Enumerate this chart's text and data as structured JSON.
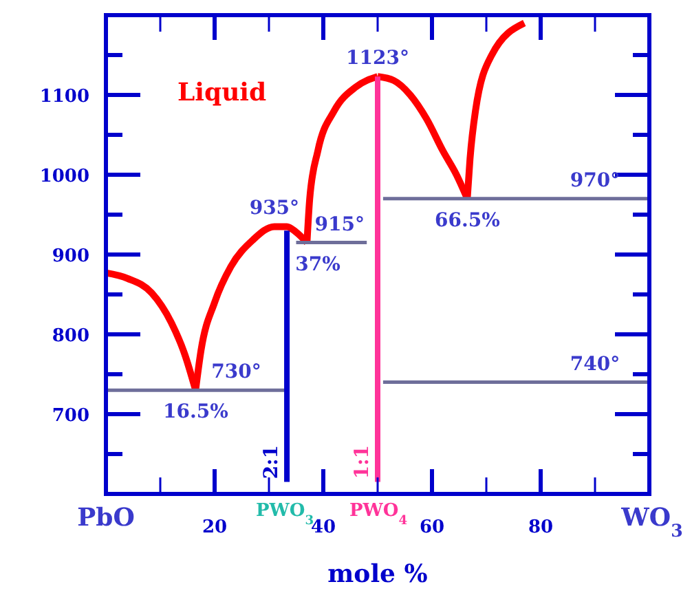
{
  "chart_data": {
    "type": "line",
    "xlabel": "mole %",
    "xlim": [
      0,
      100
    ],
    "ylim": [
      600,
      1200
    ],
    "xticks": [
      {
        "value": 10,
        "label": null
      },
      20,
      {
        "value": 30,
        "label": null
      },
      40,
      {
        "value": 50,
        "label": null
      },
      60,
      {
        "value": 70,
        "label": null
      },
      80,
      {
        "value": 90,
        "label": null
      }
    ],
    "yticks": [
      {
        "value": 650,
        "label": null
      },
      700,
      {
        "value": 750,
        "label": null
      },
      800,
      {
        "value": 850,
        "label": null
      },
      900,
      {
        "value": 950,
        "label": null
      },
      1000,
      {
        "value": 1050,
        "label": null
      },
      1100,
      {
        "value": 1150,
        "label": null
      }
    ],
    "series": [
      {
        "color": "#ff0000",
        "x": [
          0,
          4,
          8.4,
          12,
          14.5,
          16.5
        ],
        "values": [
          877,
          870,
          852,
          815,
          775,
          730
        ]
      },
      {
        "color": "#ff0000",
        "x": [
          16.5,
          17.5,
          20,
          23,
          27,
          31,
          33.3,
          35,
          37
        ],
        "values": [
          730,
          780,
          840,
          885,
          918,
          935,
          935,
          928,
          915
        ]
      },
      {
        "color": "#ff0000",
        "x": [
          37,
          37.5,
          39,
          42,
          46,
          50
        ],
        "values": [
          915,
          970,
          1030,
          1080,
          1110,
          1123
        ]
      },
      {
        "color": "#ff0000",
        "x": [
          50,
          53,
          56,
          59,
          62,
          64.5,
          66.5
        ],
        "values": [
          1123,
          1118,
          1100,
          1070,
          1030,
          1000,
          970
        ]
      },
      {
        "color": "#ff0000",
        "x": [
          66.5,
          67,
          68,
          71,
          77
        ],
        "values": [
          970,
          1020,
          1080,
          1150,
          1190
        ]
      },
      {
        "color": "#6e6e9a",
        "x": [
          0,
          33.3
        ],
        "values": [
          730,
          730
        ]
      },
      {
        "color": "#6e6e9a",
        "x": [
          35,
          48
        ],
        "values": [
          915,
          915
        ]
      },
      {
        "color": "#6e6e9a",
        "x": [
          51,
          100
        ],
        "values": [
          970,
          970
        ]
      },
      {
        "color": "#6e6e9a",
        "x": [
          51,
          100
        ],
        "values": [
          740,
          740
        ]
      },
      {
        "color": "#0000cc",
        "x": [
          33.3,
          33.3
        ],
        "values": [
          615,
          930
        ]
      },
      {
        "color": "#ff3399",
        "x": [
          50,
          50
        ],
        "values": [
          615,
          1123
        ]
      }
    ],
    "annotations": [
      "Liquid",
      {
        "text": "730°",
        "x": 24,
        "y": 730
      },
      {
        "text": "16.5%",
        "x": 16.5,
        "y": 730
      },
      {
        "text": "935°",
        "x": 31,
        "y": 935
      },
      {
        "text": "915°",
        "x": 43,
        "y": 915
      },
      {
        "text": "37%",
        "x": 39,
        "y": 915
      },
      {
        "text": "1123°",
        "x": 50,
        "y": 1123
      },
      {
        "text": "970°",
        "x": 90,
        "y": 970
      },
      {
        "text": "66.5%",
        "x": 66.5,
        "y": 970
      },
      {
        "text": "740°",
        "x": 90,
        "y": 740
      },
      {
        "text": "2:1",
        "x": 33.3,
        "y": 640
      },
      {
        "text": "1:1",
        "x": 50,
        "y": 640
      },
      "PbO",
      "PWO$_{3}$",
      "PWO$_{4}$",
      "WO$_{3}$"
    ]
  }
}
